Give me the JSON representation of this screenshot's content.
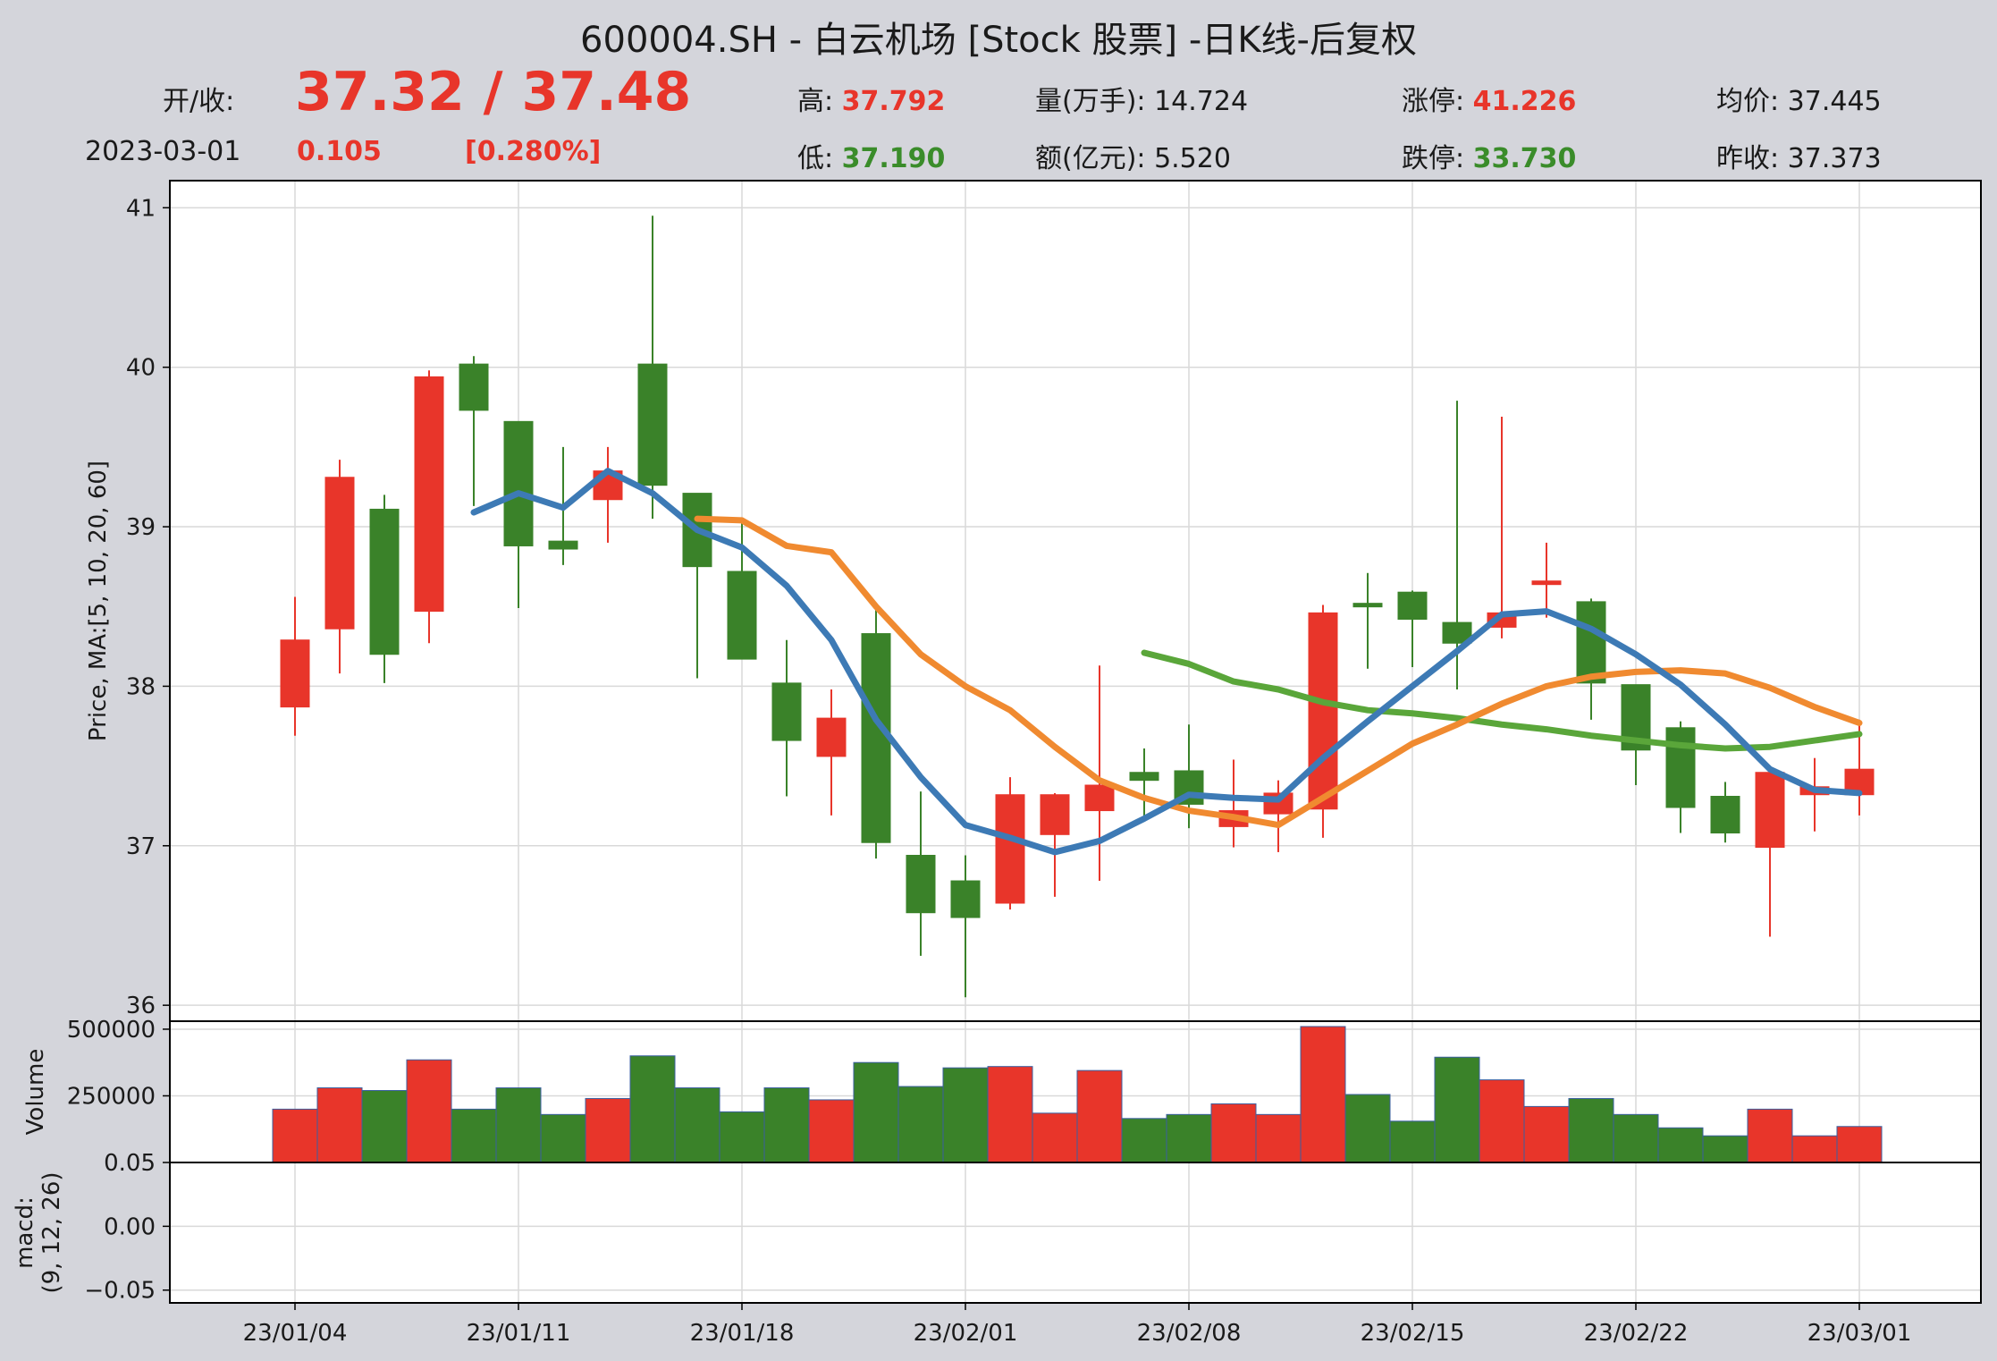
{
  "header": {
    "title": "600004.SH - 白云机场 [Stock 股票] -日K线-后复权",
    "open_close_label": "开/收:",
    "open_close_value": "37.32 / 37.48",
    "date": "2023-03-01",
    "change": "0.105",
    "change_pct": "[0.280%]"
  },
  "stats": {
    "high": {
      "label": "高: ",
      "value": "37.792"
    },
    "low": {
      "label": "低: ",
      "value": "37.190"
    },
    "volume": {
      "label": "量(万手): ",
      "value": "14.724"
    },
    "amount": {
      "label": "额(亿元): ",
      "value": "5.520"
    },
    "limit_up": {
      "label": "涨停: ",
      "value": "41.226"
    },
    "limit_down": {
      "label": "跌停: ",
      "value": "33.730"
    },
    "avg_price": {
      "label": "均价: ",
      "value": "37.445"
    },
    "prev_close": {
      "label": "昨收: ",
      "value": "37.373"
    }
  },
  "colors": {
    "up": "#e8352a",
    "down": "#3a8229",
    "ma5": "#3d7ab5",
    "ma10": "#f08a30",
    "ma20": "#5aa63a"
  },
  "chart_data": {
    "type": "candlestick",
    "dates": [
      "2023-01-04",
      "2023-01-05",
      "2023-01-06",
      "2023-01-09",
      "2023-01-10",
      "2023-01-11",
      "2023-01-12",
      "2023-01-13",
      "2023-01-16",
      "2023-01-17",
      "2023-01-18",
      "2023-01-19",
      "2023-01-20",
      "2023-01-30",
      "2023-01-31",
      "2023-02-01",
      "2023-02-02",
      "2023-02-03",
      "2023-02-06",
      "2023-02-07",
      "2023-02-08",
      "2023-02-09",
      "2023-02-10",
      "2023-02-13",
      "2023-02-14",
      "2023-02-15",
      "2023-02-16",
      "2023-02-17",
      "2023-02-20",
      "2023-02-21",
      "2023-02-22",
      "2023-02-23",
      "2023-02-24",
      "2023-02-27",
      "2023-02-28",
      "2023-03-01"
    ],
    "open": [
      37.87,
      38.36,
      39.11,
      38.47,
      40.02,
      39.66,
      38.91,
      39.17,
      40.02,
      39.21,
      38.72,
      38.02,
      37.56,
      38.33,
      36.94,
      36.78,
      36.64,
      37.07,
      37.22,
      37.46,
      37.47,
      37.12,
      37.2,
      37.23,
      38.52,
      38.59,
      38.4,
      38.37,
      38.66,
      38.53,
      38.01,
      37.74,
      37.31,
      36.99,
      37.32,
      37.32
    ],
    "high": [
      38.56,
      39.42,
      39.2,
      39.98,
      40.07,
      39.66,
      39.5,
      39.5,
      40.95,
      39.21,
      39.03,
      38.29,
      37.98,
      38.5,
      37.34,
      36.94,
      37.43,
      37.33,
      38.13,
      37.61,
      37.76,
      37.54,
      37.41,
      38.51,
      38.71,
      38.6,
      39.79,
      39.69,
      38.9,
      38.55,
      38.01,
      37.78,
      37.4,
      37.49,
      37.55,
      37.79
    ],
    "low": [
      37.69,
      38.08,
      38.02,
      38.27,
      39.13,
      38.49,
      38.76,
      38.9,
      39.05,
      38.05,
      38.19,
      37.31,
      37.19,
      36.92,
      36.31,
      36.05,
      36.6,
      36.68,
      36.78,
      37.16,
      37.11,
      36.99,
      36.96,
      37.05,
      38.11,
      38.12,
      37.98,
      38.3,
      38.43,
      37.79,
      37.38,
      37.08,
      37.02,
      36.43,
      37.09,
      37.19
    ],
    "close": [
      38.29,
      39.31,
      38.2,
      39.94,
      39.73,
      38.88,
      38.86,
      39.35,
      39.26,
      38.75,
      38.17,
      37.66,
      37.8,
      37.02,
      36.58,
      36.55,
      37.32,
      37.32,
      37.38,
      37.41,
      37.26,
      37.22,
      37.33,
      38.46,
      38.5,
      38.42,
      38.27,
      38.46,
      38.66,
      38.02,
      37.6,
      37.24,
      37.08,
      37.46,
      37.37,
      37.48
    ],
    "volume": [
      200000,
      280000,
      270000,
      385000,
      200000,
      280000,
      180000,
      240000,
      400000,
      280000,
      190000,
      280000,
      235000,
      375000,
      285000,
      355000,
      360000,
      185000,
      345000,
      165000,
      180000,
      220000,
      180000,
      510000,
      255000,
      155000,
      395000,
      310000,
      210000,
      240000,
      180000,
      130000,
      100000,
      200000,
      100000,
      135000
    ],
    "ma5": [
      null,
      null,
      null,
      null,
      39.09,
      39.21,
      39.12,
      39.35,
      39.21,
      38.98,
      38.87,
      38.63,
      38.29,
      37.79,
      37.43,
      37.13,
      37.05,
      36.96,
      37.03,
      37.17,
      37.32,
      37.3,
      37.29,
      37.55,
      37.78,
      38.0,
      38.22,
      38.45,
      38.47,
      38.36,
      38.2,
      38.01,
      37.76,
      37.48,
      37.35,
      37.33
    ],
    "ma10": [
      null,
      null,
      null,
      null,
      null,
      null,
      null,
      null,
      null,
      39.05,
      39.04,
      38.88,
      38.84,
      38.5,
      38.2,
      38.0,
      37.85,
      37.62,
      37.41,
      37.3,
      37.22,
      37.18,
      37.13,
      37.3,
      37.47,
      37.64,
      37.76,
      37.89,
      38.0,
      38.06,
      38.09,
      38.1,
      38.08,
      37.99,
      37.87,
      37.77
    ],
    "ma20": [
      null,
      null,
      null,
      null,
      null,
      null,
      null,
      null,
      null,
      null,
      null,
      null,
      null,
      null,
      null,
      null,
      null,
      null,
      null,
      38.21,
      38.14,
      38.03,
      37.98,
      37.9,
      37.85,
      37.83,
      37.8,
      37.76,
      37.73,
      37.69,
      37.66,
      37.63,
      37.61,
      37.62,
      37.66,
      37.7
    ],
    "ma_legend_periods": "[5, 10, 20, 60]",
    "macd_legend_params": "(9, 12, 26)",
    "ylabel_price": "Price, MA:[5, 10, 20, 60]",
    "ylabel_volume": "Volume",
    "ylabel_macd_line1": "macd:",
    "ylabel_macd_line2": "(9, 12, 26)",
    "price_ylim": [
      35.9,
      41.17
    ],
    "price_ticks": [
      36,
      37,
      38,
      39,
      40,
      41
    ],
    "price_tick_labels": [
      "36",
      "37",
      "38",
      "39",
      "40",
      "41"
    ],
    "volume_ylim": [
      0,
      530000
    ],
    "volume_ticks": [
      250000,
      500000
    ],
    "volume_tick_labels": [
      "250000",
      "500000"
    ],
    "macd_ylim": [
      -0.06,
      0.05
    ],
    "macd_ticks": [
      -0.05,
      0.0,
      0.05
    ],
    "macd_tick_labels": [
      "−0.05",
      "0.00",
      "0.05"
    ],
    "x_tick_indices": [
      0,
      5,
      10,
      15,
      20,
      25,
      30,
      35
    ],
    "x_tick_labels": [
      "23/01/04",
      "23/01/11",
      "23/01/18",
      "23/02/01",
      "23/02/08",
      "23/02/15",
      "23/02/22",
      "23/03/01"
    ],
    "grid": true
  }
}
